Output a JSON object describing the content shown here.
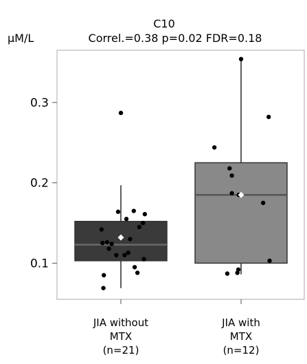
{
  "chart_data": {
    "type": "box",
    "title": "C10",
    "subtitle": "Correl.=0.38  p=0.02  FDR=0.18",
    "ylabel": "μM/L",
    "xlabel": "",
    "ylim": [
      0.055,
      0.365
    ],
    "yticks": [
      0.1,
      0.2,
      0.3
    ],
    "ytick_labels": [
      "0.1",
      "0.2",
      "0.3"
    ],
    "grid": false,
    "legend": "none",
    "groups": [
      {
        "label_lines": [
          "JIA without",
          "MTX",
          "(n=21)"
        ],
        "box_color": "#3a3a3a",
        "median_color": "#6a6a6a",
        "q1": 0.103,
        "median": 0.123,
        "q3": 0.152,
        "whisker_low": 0.069,
        "whisker_high": 0.197,
        "mean": 0.132,
        "points": [
          [
            -0.42,
            0.142
          ],
          [
            -0.4,
            0.125
          ],
          [
            -0.37,
            0.085
          ],
          [
            -0.38,
            0.069
          ],
          [
            -0.3,
            0.126
          ],
          [
            -0.26,
            0.118
          ],
          [
            -0.2,
            0.124
          ],
          [
            -0.06,
            0.164
          ],
          [
            0.0,
            0.287
          ],
          [
            -0.1,
            0.11
          ],
          [
            0.08,
            0.11
          ],
          [
            0.12,
            0.155
          ],
          [
            0.16,
            0.113
          ],
          [
            0.2,
            0.13
          ],
          [
            0.28,
            0.165
          ],
          [
            0.3,
            0.095
          ],
          [
            0.36,
            0.088
          ],
          [
            0.4,
            0.145
          ],
          [
            0.48,
            0.15
          ],
          [
            0.52,
            0.161
          ],
          [
            0.5,
            0.105
          ]
        ]
      },
      {
        "label_lines": [
          "JIA with",
          "MTX",
          "(n=12)"
        ],
        "box_color": "#898989",
        "median_color": "#555555",
        "q1": 0.1,
        "median": 0.185,
        "q3": 0.225,
        "whisker_low": 0.086,
        "whisker_high": 0.355,
        "mean": 0.185,
        "points": [
          [
            -0.58,
            0.244
          ],
          [
            -0.25,
            0.218
          ],
          [
            -0.2,
            0.209
          ],
          [
            -0.2,
            0.187
          ],
          [
            -0.05,
            0.185
          ],
          [
            -0.3,
            0.087
          ],
          [
            -0.08,
            0.088
          ],
          [
            -0.06,
            0.092
          ],
          [
            0.0,
            0.354
          ],
          [
            0.48,
            0.175
          ],
          [
            0.6,
            0.282
          ],
          [
            0.62,
            0.103
          ]
        ]
      }
    ]
  }
}
